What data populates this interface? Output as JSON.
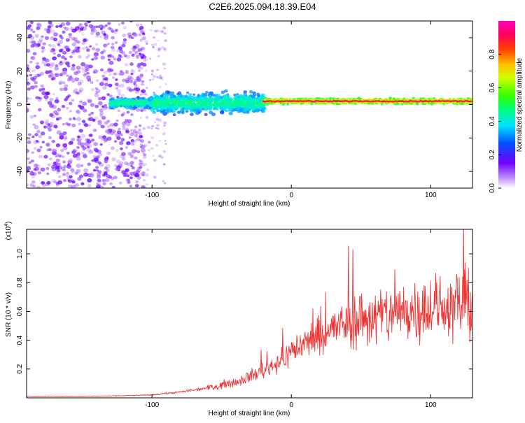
{
  "title": "C2E6.2025.094.18.39.E04",
  "spectrogram": {
    "xlabel": "Height of straight line (km)",
    "ylabel": "Frequency (Hz)",
    "xlim": [
      -190,
      130
    ],
    "ylim": [
      -50,
      50
    ],
    "xticks": [
      -100,
      0,
      100
    ],
    "xtick_labels": [
      "-100",
      "0",
      "100"
    ],
    "yticks": [
      -40,
      -20,
      0,
      20,
      40
    ],
    "ytick_labels": [
      "-40",
      "-20",
      "0",
      "20",
      "40"
    ],
    "colorbar": {
      "label": "Normalized spectral amplitude",
      "range": [
        0,
        1
      ],
      "ticks": [
        0.0,
        0.2,
        0.4,
        0.6,
        0.8
      ],
      "tick_labels": [
        "0.0",
        "0.2",
        "0.4",
        "0.6",
        "0.8"
      ]
    }
  },
  "chart_data": [
    {
      "type": "heatmap",
      "title": "C2E6.2025.094.18.39.E04",
      "xlabel": "Height of straight line (km)",
      "ylabel": "Frequency (Hz)",
      "xlim": [
        -190,
        130
      ],
      "ylim": [
        -50,
        50
      ],
      "colorbar_label": "Normalized spectral amplitude",
      "zlim": [
        0,
        1
      ],
      "regions": [
        {
          "x": [
            -190,
            -105
          ],
          "y": [
            -50,
            50
          ],
          "amplitude": 0.1,
          "description": "scattered low-amplitude noise"
        },
        {
          "x": [
            -130,
            -20
          ],
          "y": [
            -10,
            10
          ],
          "amplitude": 0.3
        },
        {
          "x": [
            -20,
            130
          ],
          "y": [
            -2,
            6
          ],
          "amplitude": 0.85,
          "center_frequency": 2
        }
      ]
    },
    {
      "type": "line",
      "xlabel": "Height of straight line (km)",
      "ylabel": "SNR (10 * v/v)",
      "y_multiplier": "(x10^4)",
      "xlim": [
        -190,
        130
      ],
      "ylim": [
        0,
        1.17
      ],
      "xticks": [
        -100,
        0,
        100
      ],
      "yticks": [
        0.2,
        0.4,
        0.6,
        0.8,
        1.0
      ],
      "color": "#ee3333",
      "x": [
        -190,
        -150,
        -120,
        -100,
        -80,
        -60,
        -40,
        -25,
        -15,
        -5,
        0,
        10,
        20,
        30,
        40,
        50,
        60,
        70,
        80,
        90,
        100,
        110,
        120,
        130
      ],
      "y": [
        0.01,
        0.01,
        0.015,
        0.02,
        0.04,
        0.07,
        0.11,
        0.17,
        0.22,
        0.27,
        0.33,
        0.38,
        0.43,
        0.48,
        0.52,
        0.55,
        0.56,
        0.58,
        0.6,
        0.62,
        0.62,
        0.63,
        0.65,
        0.68
      ]
    }
  ],
  "snr": {
    "xlabel": "Height of straight line (km)",
    "ylabel": "SNR (10 * v/v)",
    "multiplier_base": "(x10",
    "multiplier_exp": "4",
    "multiplier_close": ")",
    "xticks": [
      -100,
      0,
      100
    ],
    "xtick_labels": [
      "-100",
      "0",
      "100"
    ],
    "yticks": [
      0.2,
      0.4,
      0.6,
      0.8,
      1.0
    ],
    "ytick_labels": [
      "0.2",
      "0.4",
      "0.6",
      "0.8",
      "1.0"
    ],
    "ylim": [
      0,
      1.17
    ],
    "line_color": "#ee3333"
  }
}
